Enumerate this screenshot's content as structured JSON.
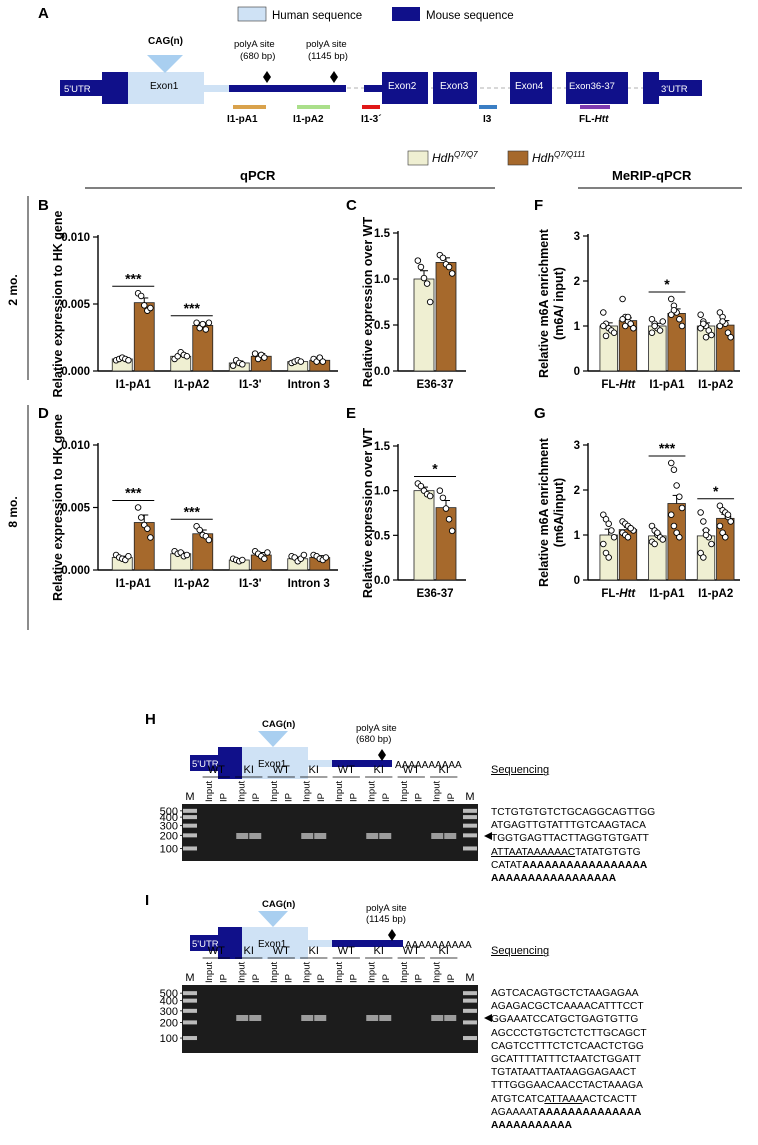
{
  "colors": {
    "wt": "#efefd2",
    "ki": "#a6692c",
    "human": "#cfe2f5",
    "mouse": "#10108a",
    "pA1": "#d9a24c",
    "pA2": "#aadf8a",
    "i13": "#e01818",
    "i3": "#3a7ec4",
    "fl": "#7d3bb0"
  },
  "panel_letters": [
    "A",
    "B",
    "C",
    "D",
    "E",
    "F",
    "G",
    "H",
    "I"
  ],
  "section_headers": {
    "qpcr": "qPCR",
    "merip": "MeRIP-qPCR"
  },
  "time_labels": {
    "early": "2 mo.",
    "late": "8 mo."
  },
  "legend": {
    "human": "Human sequence",
    "mouse": "Mouse sequence",
    "wt_main": "Hdh",
    "wt_sup": "Q7/Q7",
    "ki_main": "Hdh",
    "ki_sup": "Q7/Q111"
  },
  "gene_map": {
    "cag": "CAG(n)",
    "utr5": "5'UTR",
    "utr3": "3'UTR",
    "exon1": "Exon1",
    "exon2": "Exon2",
    "exon3": "Exon3",
    "exon4": "Exon4",
    "exon36": "Exon36-37",
    "polyA1_a": "polyA site",
    "polyA1_b": "(680 bp)",
    "polyA2_a": "polyA site",
    "polyA2_b": "(1145 bp)",
    "amp_pA1": "I1-pA1",
    "amp_pA2": "I1-pA2",
    "amp_i13": "I1-3´",
    "amp_i3": "I3",
    "amp_fl_a": "FL-",
    "amp_fl_b": "Htt"
  },
  "chart_data": [
    {
      "id": "B",
      "type": "bar",
      "ylabel": "Relative expression to HK gene",
      "categories": [
        "I1-pA1",
        "I1-pA2",
        "I1-3'",
        "Intron 3"
      ],
      "ylim": [
        0,
        0.01
      ],
      "ytick_labels": [
        "0.000",
        "0.005",
        "0.010"
      ],
      "series": [
        {
          "name": "Hdh Q7/Q7",
          "values": [
            0.0009,
            0.0011,
            0.0006,
            0.0007
          ],
          "errors": [
            0.00012,
            0.00015,
            0.00015,
            8e-05
          ],
          "points": [
            [
              0.0008,
              0.0009,
              0.001,
              0.0009,
              0.0008
            ],
            [
              0.0009,
              0.0011,
              0.0014,
              0.0012,
              0.0011
            ],
            [
              0.0004,
              0.0008,
              0.0006,
              0.0005
            ],
            [
              0.0006,
              0.0007,
              0.0008,
              0.0007
            ]
          ]
        },
        {
          "name": "Hdh Q7/Q111",
          "values": [
            0.0051,
            0.0034,
            0.0011,
            0.0008
          ],
          "errors": [
            0.00035,
            0.0002,
            0.0002,
            0.0001
          ],
          "points": [
            [
              0.0058,
              0.0056,
              0.0049,
              0.0045,
              0.0047
            ],
            [
              0.0036,
              0.0032,
              0.0035,
              0.0031,
              0.0036
            ],
            [
              0.0013,
              0.0009,
              0.0012,
              0.001
            ],
            [
              0.0009,
              0.0007,
              0.001,
              0.0007
            ]
          ]
        }
      ],
      "significance": [
        {
          "label": "***",
          "category": 0
        },
        {
          "label": "***",
          "category": 1
        }
      ]
    },
    {
      "id": "C",
      "type": "bar",
      "ylabel": "Relative expression over WT",
      "categories": [
        "E36-37"
      ],
      "ylim": [
        0,
        1.5
      ],
      "ytick_labels": [
        "0.0",
        "0.5",
        "1.0",
        "1.5"
      ],
      "series": [
        {
          "name": "Hdh Q7/Q7",
          "values": [
            1.0
          ],
          "errors": [
            0.09
          ],
          "points": [
            [
              1.2,
              1.13,
              1.01,
              0.95,
              0.75
            ]
          ]
        },
        {
          "name": "Hdh Q7/Q111",
          "values": [
            1.18
          ],
          "errors": [
            0.05
          ],
          "points": [
            [
              1.26,
              1.23,
              1.16,
              1.13,
              1.06
            ]
          ]
        }
      ],
      "significance": []
    },
    {
      "id": "F",
      "type": "bar",
      "ylabel": "Relative m6A enrichment (m6A/ input)",
      "categories": [
        "FL-Htt",
        "I1-pA1",
        "I1-pA2"
      ],
      "ylim": [
        0,
        3
      ],
      "ytick_labels": [
        "0",
        "1",
        "2",
        "3"
      ],
      "series": [
        {
          "name": "Hdh Q7/Q7",
          "values": [
            1.0,
            1.0,
            1.0
          ],
          "errors": [
            0.07,
            0.06,
            0.07
          ],
          "points": [
            [
              1.3,
              1.05,
              0.95,
              0.9,
              0.85,
              1.0,
              0.78
            ],
            [
              1.15,
              1.05,
              0.95,
              0.9,
              1.1,
              0.85,
              1.0
            ],
            [
              1.25,
              1.1,
              1.0,
              0.9,
              0.8,
              0.95,
              1.05,
              0.75
            ]
          ]
        },
        {
          "name": "Hdh Q7/Q111",
          "values": [
            1.12,
            1.28,
            1.02
          ],
          "errors": [
            0.06,
            0.1,
            0.1
          ],
          "points": [
            [
              1.6,
              1.2,
              1.1,
              1.05,
              0.95,
              1.15,
              1.0,
              1.2
            ],
            [
              1.6,
              1.45,
              1.3,
              1.15,
              1.0,
              1.25,
              1.35
            ],
            [
              1.3,
              1.2,
              1.05,
              0.85,
              0.75,
              1.0,
              1.1
            ]
          ]
        }
      ],
      "significance": [
        {
          "label": "*",
          "category": 1
        }
      ]
    },
    {
      "id": "D",
      "type": "bar",
      "ylabel": "Relative expression to HK gene",
      "categories": [
        "I1-pA1",
        "I1-pA2",
        "I1-3'",
        "Intron 3"
      ],
      "ylim": [
        0,
        0.01
      ],
      "ytick_labels": [
        "0.000",
        "0.005",
        "0.010"
      ],
      "series": [
        {
          "name": "Hdh Q7/Q7",
          "values": [
            0.001,
            0.0013,
            0.0008,
            0.0009
          ],
          "errors": [
            0.0001,
            0.00012,
            0.0001,
            0.00013
          ],
          "points": [
            [
              0.0012,
              0.001,
              0.0009,
              0.0008,
              0.0011
            ],
            [
              0.0015,
              0.0013,
              0.0014,
              0.0011,
              0.0012
            ],
            [
              0.0009,
              0.0008,
              0.0007,
              0.0008
            ],
            [
              0.0011,
              0.001,
              0.0007,
              0.0009,
              0.0012
            ]
          ]
        },
        {
          "name": "Hdh Q7/Q111",
          "values": [
            0.0038,
            0.0029,
            0.0012,
            0.001
          ],
          "errors": [
            0.0006,
            0.0003,
            0.0002,
            0.00015
          ],
          "points": [
            [
              0.005,
              0.0042,
              0.0036,
              0.0033,
              0.0026
            ],
            [
              0.0035,
              0.0032,
              0.0028,
              0.0027,
              0.0024
            ],
            [
              0.0015,
              0.0013,
              0.0011,
              0.0009,
              0.0014
            ],
            [
              0.0012,
              0.0011,
              0.0009,
              0.0008,
              0.001
            ]
          ]
        }
      ],
      "significance": [
        {
          "label": "***",
          "category": 0
        },
        {
          "label": "***",
          "category": 1
        }
      ]
    },
    {
      "id": "E",
      "type": "bar",
      "ylabel": "Relative expression over WT",
      "categories": [
        "E36-37"
      ],
      "ylim": [
        0,
        1.5
      ],
      "ytick_labels": [
        "0.0",
        "0.5",
        "1.0",
        "1.5"
      ],
      "series": [
        {
          "name": "Hdh Q7/Q7",
          "values": [
            1.0
          ],
          "errors": [
            0.04
          ],
          "points": [
            [
              1.08,
              1.05,
              1.0,
              0.96,
              0.94
            ]
          ]
        },
        {
          "name": "Hdh Q7/Q111",
          "values": [
            0.81
          ],
          "errors": [
            0.08
          ],
          "points": [
            [
              1.0,
              0.92,
              0.8,
              0.68,
              0.55
            ]
          ]
        }
      ],
      "significance": [
        {
          "label": "*",
          "category": 0
        }
      ]
    },
    {
      "id": "G",
      "type": "bar",
      "ylabel": "Relative m6A enrichment (m6A/input)",
      "categories": [
        "FL-Htt",
        "I1-pA1",
        "I1-pA2"
      ],
      "ylim": [
        0,
        3
      ],
      "ytick_labels": [
        "0",
        "1",
        "2",
        "3"
      ],
      "series": [
        {
          "name": "Hdh Q7/Q7",
          "values": [
            1.0,
            0.98,
            0.98
          ],
          "errors": [
            0.13,
            0.06,
            0.13
          ],
          "points": [
            [
              1.45,
              1.35,
              1.25,
              1.1,
              0.95,
              0.8,
              0.6,
              0.5
            ],
            [
              1.2,
              1.1,
              1.0,
              0.95,
              0.9,
              0.85,
              0.8,
              1.05
            ],
            [
              1.5,
              1.3,
              1.1,
              0.95,
              0.8,
              0.6,
              0.5,
              1.0
            ]
          ]
        },
        {
          "name": "Hdh Q7/Q111",
          "values": [
            1.12,
            1.7,
            1.37
          ],
          "errors": [
            0.05,
            0.18,
            0.09
          ],
          "points": [
            [
              1.3,
              1.25,
              1.2,
              1.15,
              1.1,
              1.05,
              1.0,
              0.95,
              1.15
            ],
            [
              2.6,
              2.45,
              2.1,
              1.85,
              1.6,
              1.45,
              1.2,
              1.05,
              0.95
            ],
            [
              1.65,
              1.55,
              1.5,
              1.4,
              1.3,
              1.2,
              1.05,
              0.95,
              1.45
            ]
          ]
        }
      ],
      "significance": [
        {
          "label": "***",
          "category": 1
        },
        {
          "label": "*",
          "category": 2
        }
      ]
    }
  ],
  "gels": {
    "H": {
      "lanes": [
        {
          "group": "WT",
          "sub": [
            "Input",
            "IP"
          ]
        },
        {
          "group": "KI",
          "sub": [
            "Input",
            "IP"
          ]
        },
        {
          "group": "WT",
          "sub": [
            "Input",
            "IP"
          ]
        },
        {
          "group": "KI",
          "sub": [
            "Input",
            "IP"
          ]
        },
        {
          "group": "WT",
          "sub": [
            "Input",
            "IP"
          ]
        },
        {
          "group": "KI",
          "sub": [
            "Input",
            "IP"
          ]
        },
        {
          "group": "WT",
          "sub": [
            "Input",
            "IP"
          ]
        },
        {
          "group": "KI",
          "sub": [
            "Input",
            "IP"
          ]
        }
      ],
      "marker": "M",
      "ladder": [
        "500",
        "400",
        "300",
        "200",
        "100"
      ],
      "tail": "AAAAAAAAAA",
      "polyA_a": "polyA site",
      "polyA_b": "(680 bp)",
      "seq_title": "Sequencing",
      "seq_lines": [
        [
          {
            "t": "TCTGTGTGTCTGCAGGCAGTTGG"
          }
        ],
        [
          {
            "t": "ATGAGTTGTATTTGTCAAGTACA"
          }
        ],
        [
          {
            "t": "TGGTGAGTTACTTAGGTGTGATT"
          }
        ],
        [
          {
            "t": "ATTAATAAAAAAC",
            "u": true
          },
          {
            "t": "TATATGTGTG"
          }
        ],
        [
          {
            "t": "CATAT"
          },
          {
            "t": "AAAAAAAAAAAAAAAAA",
            "b": true
          }
        ],
        [
          {
            "t": "AAAAAAAAAAAAAAAAA",
            "b": true
          }
        ]
      ]
    },
    "I": {
      "lanes": [
        {
          "group": "WT",
          "sub": [
            "Input",
            "IP"
          ]
        },
        {
          "group": "KI",
          "sub": [
            "Input",
            "IP"
          ]
        },
        {
          "group": "WT",
          "sub": [
            "Input",
            "IP"
          ]
        },
        {
          "group": "KI",
          "sub": [
            "Input",
            "IP"
          ]
        },
        {
          "group": "WT",
          "sub": [
            "Input",
            "IP"
          ]
        },
        {
          "group": "KI",
          "sub": [
            "Input",
            "IP"
          ]
        },
        {
          "group": "WT",
          "sub": [
            "Input",
            "IP"
          ]
        },
        {
          "group": "KI",
          "sub": [
            "Input",
            "IP"
          ]
        }
      ],
      "marker": "M",
      "ladder": [
        "500",
        "400",
        "300",
        "200",
        "100"
      ],
      "tail": "AAAAAAAAAA",
      "polyA_a": "polyA site",
      "polyA_b": "(1145 bp)",
      "seq_title": "Sequencing",
      "seq_lines": [
        [
          {
            "t": "AGTCACAGTGCTCTAAGAGAA"
          }
        ],
        [
          {
            "t": "AGAGACGCTCAAAACATTTCCT"
          }
        ],
        [
          {
            "t": "GGAAATCCATGCTGAGTGTTG"
          }
        ],
        [
          {
            "t": "AGCCCTGTGCTCTCTTGCAGCT"
          }
        ],
        [
          {
            "t": "CAGTCCTTTCTCTCAACTCTGG"
          }
        ],
        [
          {
            "t": "GCATTTTATTTCTAATCTGGATT"
          }
        ],
        [
          {
            "t": "TGTATAATTAATAAGGAGAACT"
          }
        ],
        [
          {
            "t": "TTTGGGAACAACCTACTAAAGA"
          }
        ],
        [
          {
            "t": "ATGTCATC"
          },
          {
            "t": "ATTAAA",
            "u": true
          },
          {
            "t": "ACTCACTT"
          }
        ],
        [
          {
            "t": "AGAAAAT"
          },
          {
            "t": "AAAAAAAAAAAAAA",
            "b": true
          }
        ],
        [
          {
            "t": "AAAAAAAAAAA",
            "b": true
          }
        ]
      ]
    }
  }
}
